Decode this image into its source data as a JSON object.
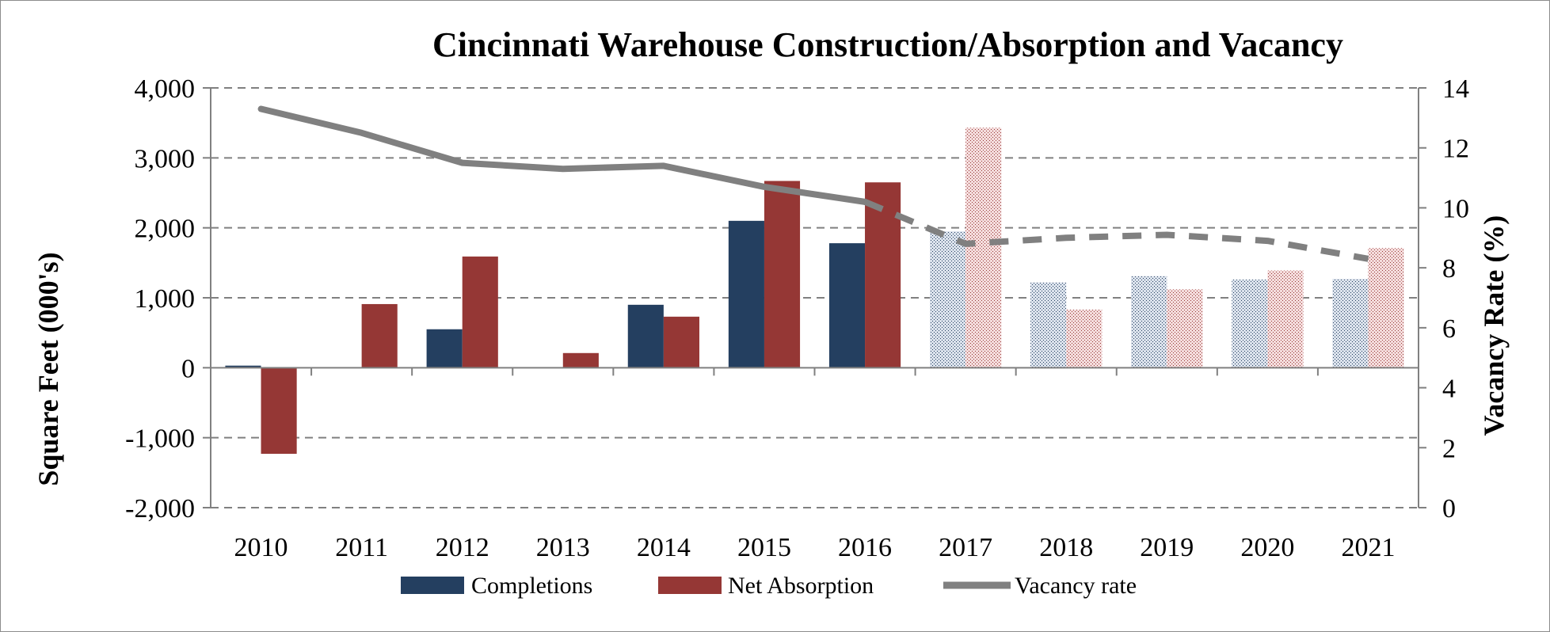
{
  "chart_data": {
    "type": "bar",
    "title": "Cincinnati Warehouse Construction/Absorption and Vacancy",
    "ylabel": "Square Feet (000's)",
    "y2label": "Vacancy Rate (%)",
    "xlabel": "",
    "categories": [
      "2010",
      "2011",
      "2012",
      "2013",
      "2014",
      "2015",
      "2016",
      "2017",
      "2018",
      "2019",
      "2020",
      "2021"
    ],
    "forecast_start_index": 7,
    "ylim": [
      -2000,
      4000
    ],
    "y2lim": [
      0,
      14
    ],
    "yticks": [
      -2000,
      -1000,
      0,
      1000,
      2000,
      3000,
      4000
    ],
    "ytick_labels": [
      "-2,000",
      "-1,000",
      "0",
      "1,000",
      "2,000",
      "3,000",
      "4,000"
    ],
    "y2ticks": [
      0,
      2,
      4,
      6,
      8,
      10,
      12,
      14
    ],
    "y2tick_labels": [
      "0",
      "2",
      "4",
      "6",
      "8",
      "10",
      "12",
      "14"
    ],
    "grid": "horizontal dashed",
    "legend_position": "bottom",
    "series": [
      {
        "name": "Completions",
        "type": "bar",
        "axis": "left",
        "color": "#243F60",
        "values": [
          30,
          0,
          550,
          0,
          900,
          2100,
          1780,
          1950,
          1220,
          1310,
          1260,
          1270
        ]
      },
      {
        "name": "Net Absorption",
        "type": "bar",
        "axis": "left",
        "color": "#953735",
        "values": [
          -1230,
          910,
          1590,
          210,
          730,
          2670,
          2650,
          3430,
          830,
          1120,
          1390,
          1710
        ]
      },
      {
        "name": "Vacancy rate",
        "type": "line",
        "axis": "right",
        "color": "#808080",
        "values": [
          13.3,
          12.5,
          11.5,
          11.3,
          11.4,
          10.7,
          10.2,
          8.8,
          9.0,
          9.1,
          8.9,
          8.3
        ]
      }
    ]
  }
}
